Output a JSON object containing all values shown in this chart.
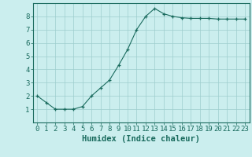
{
  "x": [
    0,
    1,
    2,
    3,
    4,
    5,
    6,
    7,
    8,
    9,
    10,
    11,
    12,
    13,
    14,
    15,
    16,
    17,
    18,
    19,
    20,
    21,
    22,
    23
  ],
  "y": [
    2.0,
    1.5,
    1.0,
    1.0,
    1.0,
    1.2,
    2.0,
    2.6,
    3.2,
    4.3,
    5.5,
    7.0,
    8.0,
    8.6,
    8.2,
    8.0,
    7.9,
    7.85,
    7.85,
    7.85,
    7.8,
    7.8,
    7.8,
    7.8
  ],
  "xlabel": "Humidex (Indice chaleur)",
  "xlim": [
    -0.5,
    23.5
  ],
  "ylim": [
    0,
    9
  ],
  "yticks": [
    1,
    2,
    3,
    4,
    5,
    6,
    7,
    8
  ],
  "xticks": [
    0,
    1,
    2,
    3,
    4,
    5,
    6,
    7,
    8,
    9,
    10,
    11,
    12,
    13,
    14,
    15,
    16,
    17,
    18,
    19,
    20,
    21,
    22,
    23
  ],
  "xtick_labels": [
    "0",
    "1",
    "2",
    "3",
    "4",
    "5",
    "6",
    "7",
    "8",
    "9",
    "10",
    "11",
    "12",
    "13",
    "14",
    "15",
    "16",
    "17",
    "18",
    "19",
    "20",
    "21",
    "22",
    "23"
  ],
  "line_color": "#1a6b5e",
  "marker": "+",
  "background_color": "#cbeeee",
  "grid_color": "#9ecece",
  "axis_color": "#1a6b5e",
  "label_color": "#1a6b5e",
  "xlabel_fontsize": 7.5,
  "tick_fontsize": 6.5
}
